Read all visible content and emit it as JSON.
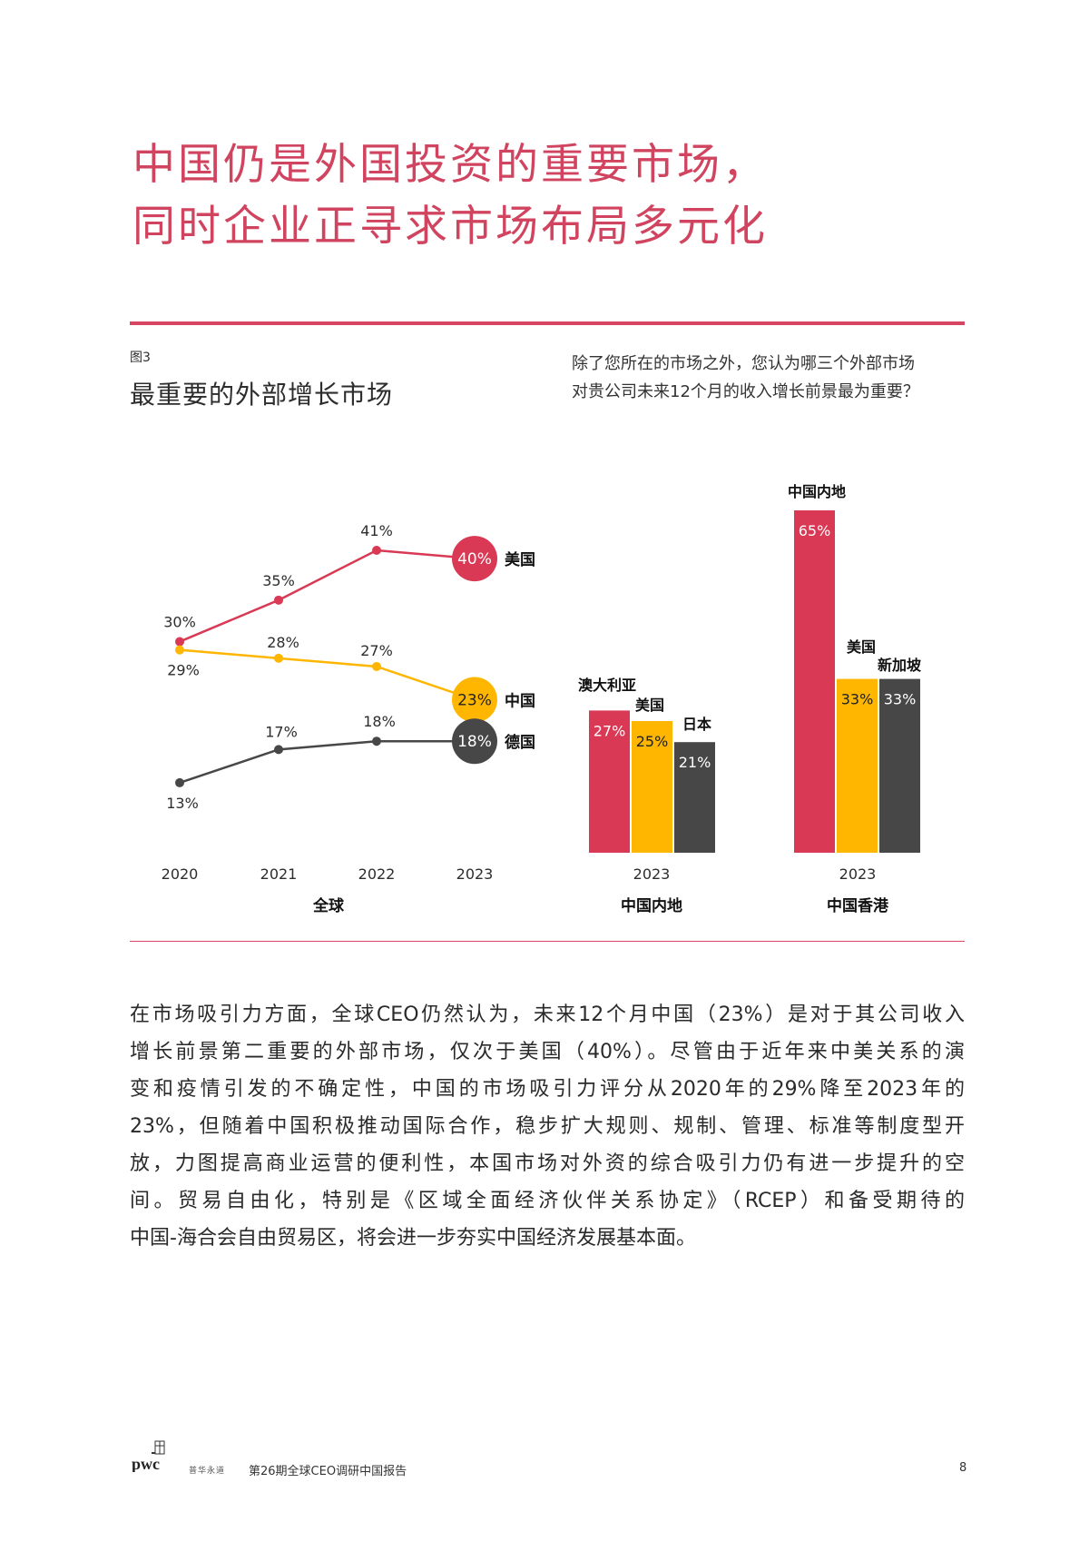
{
  "page": {
    "title_lines": [
      "中国仍是外国投资的重要市场，",
      "同时企业正寻求市场布局多元化"
    ],
    "figure_number": "图3",
    "figure_title": "最重要的外部增长市场",
    "question_lines": [
      "除了您所在的市场之外，您认为哪三个外部市场",
      "对贵公司未来12个月的收入增长前景最为重要？"
    ],
    "body_lines": [
      "在市场吸引力方面，全球CEO仍然认为，未来12个月中国（23%）是对于其公司收入",
      "增长前景第二重要的外部市场，仅次于美国（40%）。尽管由于近年来中美关系的演",
      "变和疫情引发的不确定性，中国的市场吸引力评分从2020年的29%降至2023年的",
      "23%，但随着中国积极推动国际合作，稳步扩大规则、规制、管理、标准等制度型开",
      "放，力图提高商业运营的便利性，本国市场对外资的综合吸引力仍有进一步提升的空",
      "间。贸易自由化，特别是《区域全面经济伙伴关系协定》（RCEP）和备受期待的",
      "中国-海合会自由贸易区，将会进一步夯实中国经济发展基本面。"
    ]
  },
  "footer": {
    "logo": "pwc",
    "motto": "普华永道",
    "report_name": "第26期全球CEO调研中国报告",
    "page_number": "8"
  },
  "colors": {
    "red": "#d93954",
    "yellow": "#ffb600",
    "dark": "#474747",
    "accent": "#d64562"
  },
  "chart_data": [
    {
      "type": "line",
      "xlabel": "全球",
      "categories": [
        "2020",
        "2021",
        "2022",
        "2023"
      ],
      "series": [
        {
          "name": "美国",
          "values": [
            30,
            35,
            41,
            40
          ],
          "labels": [
            "30%",
            "35%",
            "41%",
            "40%"
          ],
          "color": "#d93954"
        },
        {
          "name": "中国",
          "values": [
            29,
            28,
            27,
            23
          ],
          "labels": [
            "29%",
            "28%",
            "27%",
            "23%"
          ],
          "color": "#ffb600"
        },
        {
          "name": "德国",
          "values": [
            13,
            17,
            18,
            18
          ],
          "labels": [
            "13%",
            "17%",
            "18%",
            "18%"
          ],
          "color": "#474747"
        }
      ],
      "grid": false
    },
    {
      "type": "bar",
      "xlabel": "中国内地",
      "category": "2023",
      "bars": [
        {
          "name": "澳大利亚",
          "value": 27,
          "label": "27%",
          "color": "#d93954"
        },
        {
          "name": "美国",
          "value": 25,
          "label": "25%",
          "color": "#ffb600"
        },
        {
          "name": "日本",
          "value": 21,
          "label": "21%",
          "color": "#474747"
        }
      ]
    },
    {
      "type": "bar",
      "xlabel": "中国香港",
      "category": "2023",
      "bars": [
        {
          "name": "中国内地",
          "value": 65,
          "label": "65%",
          "color": "#d93954"
        },
        {
          "name": "美国",
          "value": 33,
          "label": "33%",
          "color": "#ffb600"
        },
        {
          "name": "新加坡",
          "value": 33,
          "label": "33%",
          "color": "#474747"
        }
      ]
    }
  ]
}
